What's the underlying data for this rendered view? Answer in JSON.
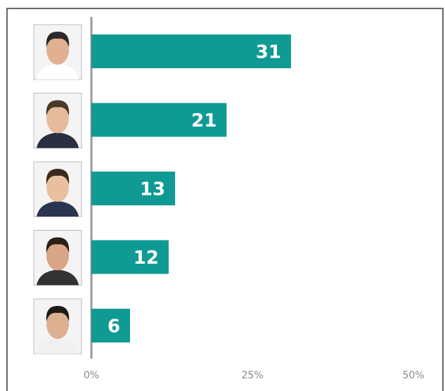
{
  "chart_data": {
    "type": "bar",
    "orientation": "horizontal",
    "categories": [
      null,
      null,
      null,
      null,
      null
    ],
    "values": [
      31,
      21,
      13,
      12,
      6
    ],
    "color": "#109a94",
    "xlim": [
      0,
      50
    ],
    "xticks": [
      {
        "value": 0,
        "label": "0%"
      },
      {
        "value": 25,
        "label": "25%"
      },
      {
        "value": 50,
        "label": "50%"
      }
    ],
    "grid": false
  }
}
